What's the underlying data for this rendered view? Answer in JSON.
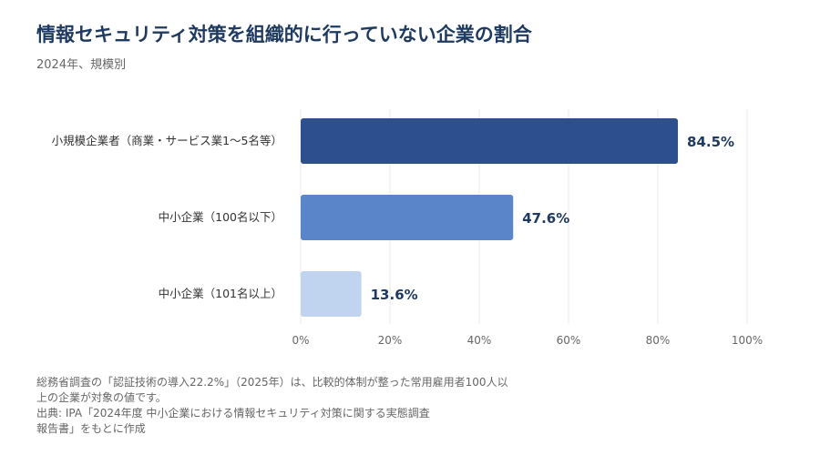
{
  "header": {
    "title": "情報セキュリティ対策を組織的に行っていない企業の割合",
    "subtitle": "2024年、規模別"
  },
  "chart_data": {
    "type": "bar",
    "orientation": "horizontal",
    "categories": [
      "小規模企業者（商業・サービス業1〜5名等）",
      "中小企業（100名以下）",
      "中小企業（101名以上）"
    ],
    "values": [
      84.5,
      47.6,
      13.6
    ],
    "value_labels": [
      "84.5%",
      "47.6%",
      "13.6%"
    ],
    "bar_colors": [
      "#2e4f8e",
      "#5b85c9",
      "#c0d3ef"
    ],
    "xlim": [
      0,
      100
    ],
    "x_ticks": [
      0,
      20,
      40,
      60,
      80,
      100
    ],
    "x_tick_labels": [
      "0%",
      "20%",
      "40%",
      "60%",
      "80%",
      "100%"
    ],
    "grid": true,
    "legend": "none"
  },
  "notes": {
    "lines": [
      "総務省調査の「認証技術の導入22.2%」（2025年）は、比較的体制が整った常用雇用者100人以",
      "上の企業が対象の値です。",
      "出典: IPA「2024年度 中小企業における情報セキュリティ対策に関する実態調査",
      "報告書」をもとに作成"
    ]
  },
  "colors": {
    "title": "#1f3a60",
    "value_label": "#1f3a60",
    "axis_text": "#666666",
    "grid": "#ebebeb"
  }
}
